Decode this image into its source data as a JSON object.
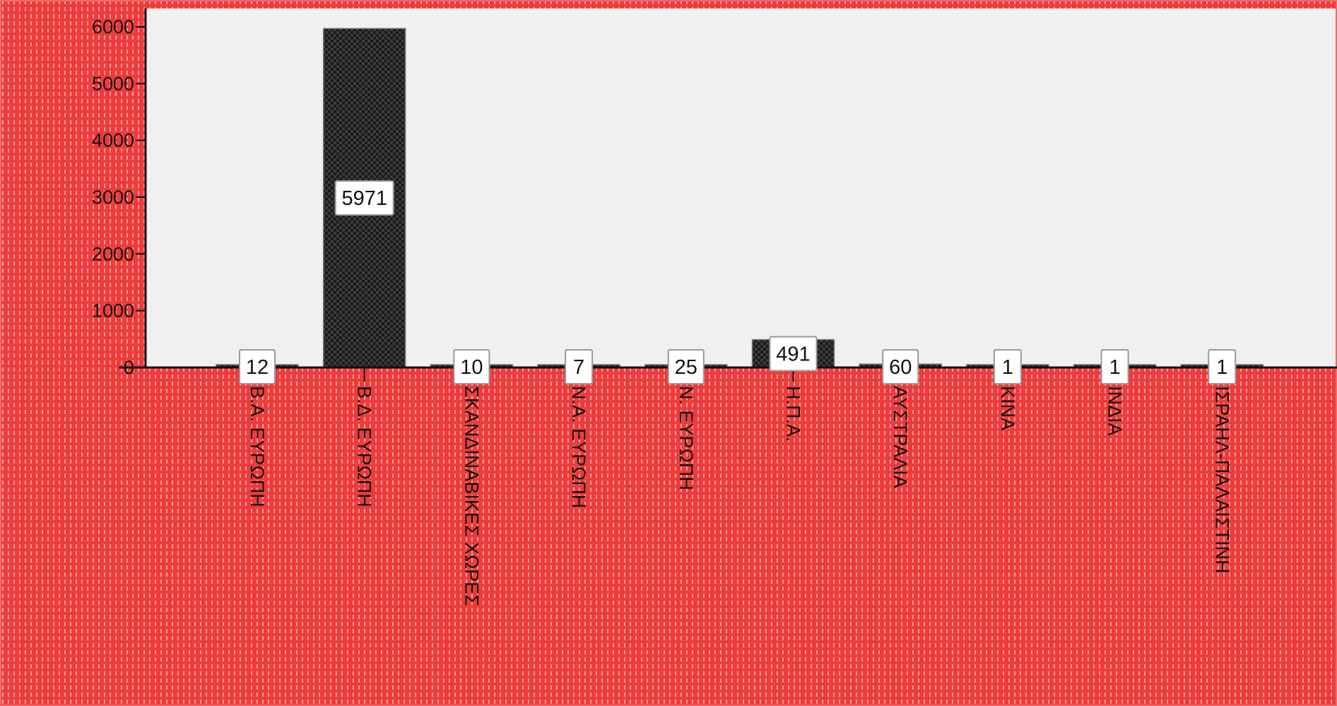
{
  "chart_data": {
    "type": "bar",
    "categories": [
      "Β.Α. ΕΥΡΩΠΗ",
      "Β.Δ. ΕΥΡΩΠΗ",
      "ΣΚΑΝΔΙΝΑΒΙΚΕΣ ΧΩΡΕΣ",
      "Ν.Α. ΕΥΡΩΠΗ",
      "Ν. ΕΥΡΩΠΗ",
      "Η.Π.Α.",
      "ΑΥΣΤΡΑΛΙΑ",
      "ΚΙΝΑ",
      "ΙΝΔΙΑ",
      "ΙΣΡΑΗΛ-ΠΑΛΑΙΣΤΙΝΗ"
    ],
    "values": [
      12,
      5971,
      10,
      7,
      25,
      491,
      60,
      1,
      1,
      1
    ],
    "data_labels": [
      "12",
      "5971",
      "10",
      "7",
      "25",
      "491",
      "60",
      "1",
      "1",
      "1"
    ],
    "y_ticks": [
      0,
      1000,
      2000,
      3000,
      4000,
      5000,
      6000
    ],
    "y_tick_labels": [
      "0",
      "1000",
      "2000",
      "3000",
      "4000",
      "5000",
      "6000"
    ],
    "ylim": [
      0,
      6000
    ],
    "title": "",
    "xlabel": "",
    "ylabel": "",
    "grid": false,
    "legend": "none",
    "colors": {
      "page_background": "#ee3b3b",
      "plot_background": "#f0f0f0",
      "border": "#f06a6a",
      "bar_fill": "#1a1a1a",
      "bar_pattern": "#3c3c3c",
      "label_box": "#ffffff"
    }
  }
}
